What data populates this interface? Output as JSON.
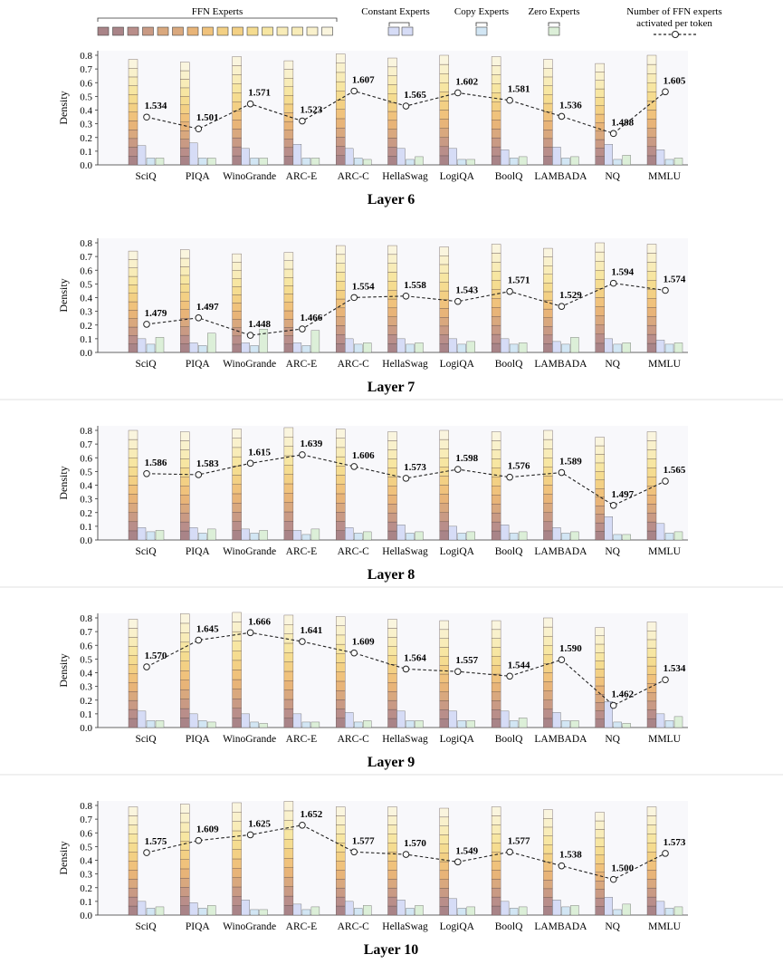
{
  "legend": {
    "ffn_label": "FFN Experts",
    "constant_label": "Constant Experts",
    "copy_label": "Copy Experts",
    "zero_label": "Zero Experts",
    "line_label_1": "Number of FFN experts",
    "line_label_2": "activated per token"
  },
  "colors": {
    "ffn_ramp": [
      "#a98488",
      "#b98e8a",
      "#c99a84",
      "#d9a87e",
      "#e8b478",
      "#f0c27c",
      "#f3d084",
      "#f5dc90",
      "#f7e6a2",
      "#f8ecb8",
      "#f9f1cc",
      "#faf5de"
    ],
    "constant": "#d6dcf6",
    "copy": "#d2e6f4",
    "zero": "#dcefd8",
    "line": "#222222",
    "panel_bg": "#f8f8fb"
  },
  "chart_data": [
    {
      "type": "bar",
      "title": "Layer 6",
      "ylabel": "Density",
      "ylim": [
        0,
        0.8
      ],
      "yticks": [
        "0.0",
        "0.1",
        "0.2",
        "0.3",
        "0.4",
        "0.5",
        "0.6",
        "0.7",
        "0.8"
      ],
      "categories": [
        "SciQ",
        "PIQA",
        "WinoGrande",
        "ARC-E",
        "ARC-C",
        "HellaSwag",
        "LogiQA",
        "BoolQ",
        "LAMBADA",
        "NQ",
        "MMLU"
      ],
      "series": [
        {
          "name": "FFN Experts",
          "values": [
            0.77,
            0.75,
            0.79,
            0.76,
            0.81,
            0.78,
            0.8,
            0.79,
            0.77,
            0.74,
            0.8
          ]
        },
        {
          "name": "Constant Experts",
          "values": [
            0.14,
            0.16,
            0.12,
            0.15,
            0.12,
            0.12,
            0.12,
            0.11,
            0.13,
            0.15,
            0.11
          ]
        },
        {
          "name": "Copy Experts",
          "values": [
            0.05,
            0.05,
            0.05,
            0.05,
            0.05,
            0.04,
            0.04,
            0.05,
            0.05,
            0.04,
            0.04
          ]
        },
        {
          "name": "Zero Experts",
          "values": [
            0.05,
            0.05,
            0.05,
            0.05,
            0.04,
            0.06,
            0.04,
            0.06,
            0.06,
            0.07,
            0.05
          ]
        }
      ],
      "line": {
        "name": "Number of FFN experts activated per token",
        "values": [
          1.534,
          1.501,
          1.571,
          1.523,
          1.607,
          1.565,
          1.602,
          1.581,
          1.536,
          1.488,
          1.605
        ],
        "labels": [
          "1.534",
          "1.501",
          "1.571",
          "1.523",
          "1.607",
          "1.565",
          "1.602",
          "1.581",
          "1.536",
          "1.488",
          "1.605"
        ]
      }
    },
    {
      "type": "bar",
      "title": "Layer 7",
      "ylabel": "Density",
      "ylim": [
        0,
        0.8
      ],
      "yticks": [
        "0.0",
        "0.1",
        "0.2",
        "0.3",
        "0.4",
        "0.5",
        "0.6",
        "0.7",
        "0.8"
      ],
      "categories": [
        "SciQ",
        "PIQA",
        "WinoGrande",
        "ARC-E",
        "ARC-C",
        "HellaSwag",
        "LogiQA",
        "BoolQ",
        "LAMBADA",
        "NQ",
        "MMLU"
      ],
      "series": [
        {
          "name": "FFN Experts",
          "values": [
            0.74,
            0.75,
            0.72,
            0.73,
            0.78,
            0.78,
            0.77,
            0.79,
            0.76,
            0.8,
            0.79
          ]
        },
        {
          "name": "Constant Experts",
          "values": [
            0.1,
            0.07,
            0.07,
            0.07,
            0.1,
            0.1,
            0.1,
            0.1,
            0.08,
            0.1,
            0.09
          ]
        },
        {
          "name": "Copy Experts",
          "values": [
            0.06,
            0.05,
            0.05,
            0.05,
            0.06,
            0.06,
            0.06,
            0.06,
            0.06,
            0.06,
            0.06
          ]
        },
        {
          "name": "Zero Experts",
          "values": [
            0.11,
            0.14,
            0.17,
            0.16,
            0.07,
            0.07,
            0.08,
            0.07,
            0.11,
            0.07,
            0.07
          ]
        }
      ],
      "line": {
        "name": "Number of FFN experts activated per token",
        "values": [
          1.479,
          1.497,
          1.448,
          1.466,
          1.554,
          1.558,
          1.543,
          1.571,
          1.529,
          1.594,
          1.574
        ],
        "labels": [
          "1.479",
          "1.497",
          "1.448",
          "1.466",
          "1.554",
          "1.558",
          "1.543",
          "1.571",
          "1.529",
          "1.594",
          "1.574"
        ]
      }
    },
    {
      "type": "bar",
      "title": "Layer 8",
      "ylabel": "Density",
      "ylim": [
        0,
        0.8
      ],
      "yticks": [
        "0.0",
        "0.1",
        "0.2",
        "0.3",
        "0.4",
        "0.5",
        "0.6",
        "0.7",
        "0.8"
      ],
      "categories": [
        "SciQ",
        "PIQA",
        "WinoGrande",
        "ARC-E",
        "ARC-C",
        "HellaSwag",
        "LogiQA",
        "BoolQ",
        "LAMBADA",
        "NQ",
        "MMLU"
      ],
      "series": [
        {
          "name": "FFN Experts",
          "values": [
            0.8,
            0.79,
            0.81,
            0.82,
            0.81,
            0.79,
            0.8,
            0.79,
            0.8,
            0.75,
            0.79
          ]
        },
        {
          "name": "Constant Experts",
          "values": [
            0.09,
            0.09,
            0.08,
            0.07,
            0.09,
            0.11,
            0.1,
            0.11,
            0.09,
            0.17,
            0.12
          ]
        },
        {
          "name": "Copy Experts",
          "values": [
            0.06,
            0.05,
            0.05,
            0.04,
            0.05,
            0.05,
            0.05,
            0.05,
            0.05,
            0.04,
            0.05
          ]
        },
        {
          "name": "Zero Experts",
          "values": [
            0.07,
            0.08,
            0.07,
            0.08,
            0.06,
            0.06,
            0.06,
            0.06,
            0.06,
            0.04,
            0.06
          ]
        }
      ],
      "line": {
        "name": "Number of FFN experts activated per token",
        "values": [
          1.586,
          1.583,
          1.615,
          1.639,
          1.606,
          1.573,
          1.598,
          1.576,
          1.589,
          1.497,
          1.565
        ],
        "labels": [
          "1.586",
          "1.583",
          "1.615",
          "1.639",
          "1.606",
          "1.573",
          "1.598",
          "1.576",
          "1.589",
          "1.497",
          "1.565"
        ]
      }
    },
    {
      "type": "bar",
      "title": "Layer 9",
      "ylabel": "Density",
      "ylim": [
        0,
        0.8
      ],
      "yticks": [
        "0.0",
        "0.1",
        "0.2",
        "0.3",
        "0.4",
        "0.5",
        "0.6",
        "0.7",
        "0.8"
      ],
      "categories": [
        "SciQ",
        "PIQA",
        "WinoGrande",
        "ARC-E",
        "ARC-C",
        "HellaSwag",
        "LogiQA",
        "BoolQ",
        "LAMBADA",
        "NQ",
        "MMLU"
      ],
      "series": [
        {
          "name": "FFN Experts",
          "values": [
            0.79,
            0.83,
            0.84,
            0.82,
            0.81,
            0.79,
            0.78,
            0.78,
            0.8,
            0.73,
            0.77
          ]
        },
        {
          "name": "Constant Experts",
          "values": [
            0.12,
            0.1,
            0.1,
            0.1,
            0.11,
            0.12,
            0.12,
            0.12,
            0.11,
            0.19,
            0.1
          ]
        },
        {
          "name": "Copy Experts",
          "values": [
            0.05,
            0.05,
            0.04,
            0.04,
            0.04,
            0.05,
            0.05,
            0.05,
            0.05,
            0.04,
            0.05
          ]
        },
        {
          "name": "Zero Experts",
          "values": [
            0.05,
            0.04,
            0.03,
            0.04,
            0.05,
            0.05,
            0.05,
            0.07,
            0.05,
            0.03,
            0.08
          ]
        }
      ],
      "line": {
        "name": "Number of FFN experts activated per token",
        "values": [
          1.57,
          1.645,
          1.666,
          1.641,
          1.609,
          1.564,
          1.557,
          1.544,
          1.59,
          1.462,
          1.534
        ],
        "labels": [
          "1.570",
          "1.645",
          "1.666",
          "1.641",
          "1.609",
          "1.564",
          "1.557",
          "1.544",
          "1.590",
          "1.462",
          "1.534"
        ]
      }
    },
    {
      "type": "bar",
      "title": "Layer 10",
      "ylabel": "Density",
      "ylim": [
        0,
        0.8
      ],
      "yticks": [
        "0.0",
        "0.1",
        "0.2",
        "0.3",
        "0.4",
        "0.5",
        "0.6",
        "0.7",
        "0.8"
      ],
      "categories": [
        "SciQ",
        "PIQA",
        "WinoGrande",
        "ARC-E",
        "ARC-C",
        "HellaSwag",
        "LogiQA",
        "BoolQ",
        "LAMBADA",
        "NQ",
        "MMLU"
      ],
      "series": [
        {
          "name": "FFN Experts",
          "values": [
            0.79,
            0.81,
            0.82,
            0.83,
            0.79,
            0.79,
            0.78,
            0.79,
            0.77,
            0.75,
            0.79
          ]
        },
        {
          "name": "Constant Experts",
          "values": [
            0.1,
            0.09,
            0.11,
            0.08,
            0.1,
            0.11,
            0.12,
            0.1,
            0.11,
            0.13,
            0.1
          ]
        },
        {
          "name": "Copy Experts",
          "values": [
            0.05,
            0.05,
            0.04,
            0.04,
            0.05,
            0.05,
            0.05,
            0.05,
            0.06,
            0.04,
            0.05
          ]
        },
        {
          "name": "Zero Experts",
          "values": [
            0.06,
            0.07,
            0.04,
            0.06,
            0.07,
            0.07,
            0.06,
            0.06,
            0.07,
            0.08,
            0.06
          ]
        }
      ],
      "line": {
        "name": "Number of FFN experts activated per token",
        "values": [
          1.575,
          1.609,
          1.625,
          1.652,
          1.577,
          1.57,
          1.549,
          1.577,
          1.538,
          1.5,
          1.573
        ],
        "labels": [
          "1.575",
          "1.609",
          "1.625",
          "1.652",
          "1.577",
          "1.570",
          "1.549",
          "1.577",
          "1.538",
          "1.500",
          "1.573"
        ]
      }
    }
  ]
}
